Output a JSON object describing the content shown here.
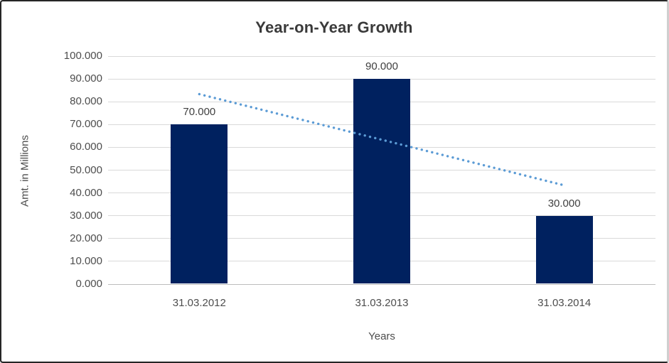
{
  "chart_data": {
    "type": "bar",
    "title": "Year-on-Year Growth",
    "xlabel": "Years",
    "ylabel": "Amt. in Millions",
    "categories": [
      "31.03.2012",
      "31.03.2013",
      "31.03.2014"
    ],
    "values": [
      70,
      90,
      30
    ],
    "data_labels": [
      "70.000",
      "90.000",
      "30.000"
    ],
    "ylim": [
      0,
      100
    ],
    "y_tick_step": 10,
    "y_tick_labels": [
      "0.000",
      "10.000",
      "20.000",
      "30.000",
      "40.000",
      "50.000",
      "60.000",
      "70.000",
      "80.000",
      "90.000",
      "100.000"
    ],
    "grid": true,
    "legend": "none",
    "bar_color": "#00215f",
    "trendline": {
      "type": "linear",
      "fitted_values": [
        83.33,
        63.33,
        43.33
      ],
      "color": "#5b9bd5",
      "style": "dotted"
    },
    "colors": {
      "grid": "#d9d9d9",
      "axis": "#bdbdbd",
      "text": "#4d4d4d",
      "title": "#3a3a3a"
    }
  }
}
